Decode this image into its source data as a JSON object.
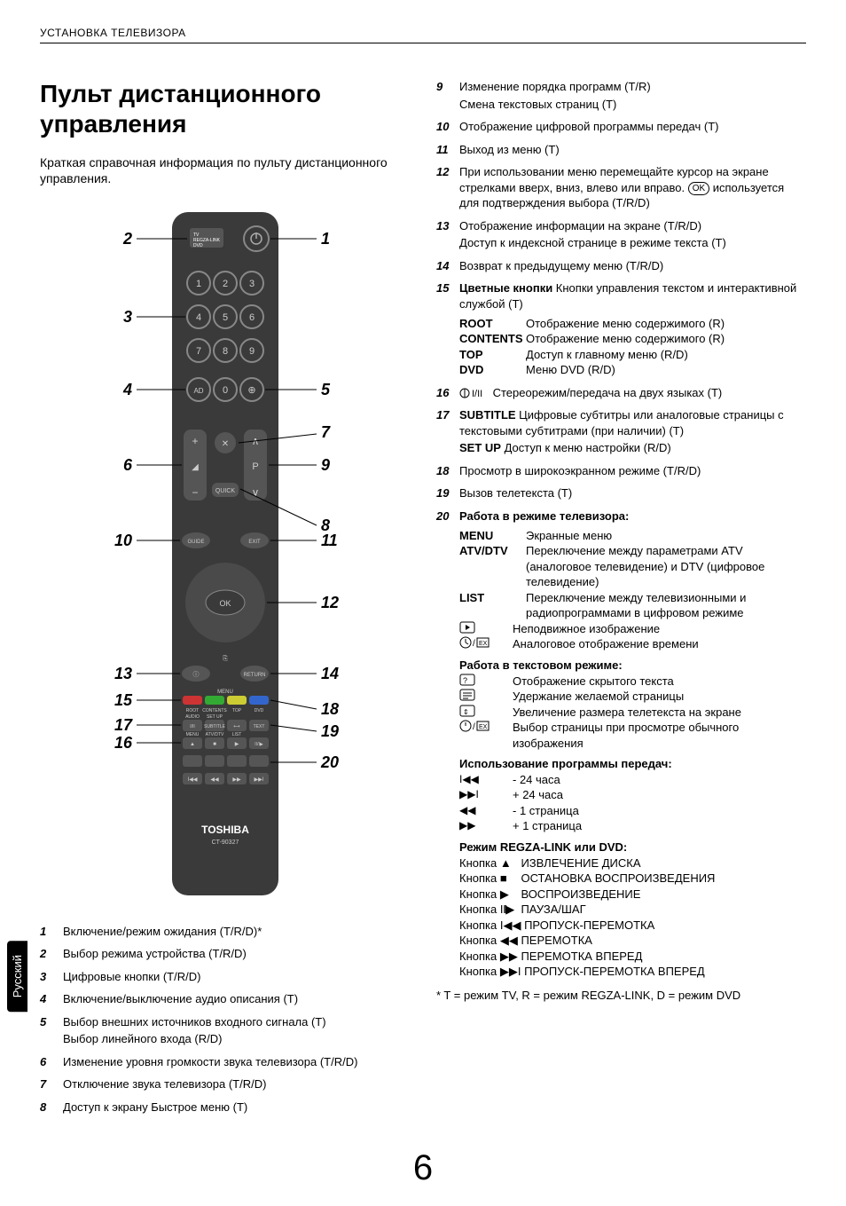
{
  "header": "УСТАНОВКА ТЕЛЕВИЗОРА",
  "title": "Пульт дистанционного управления",
  "intro": "Краткая справочная информация по пульту дистанционного управления.",
  "lang_tab": "Русский",
  "page_number": "6",
  "footnote": "* T = режим TV, R = режим REGZA-LINK, D = режим DVD",
  "remote": {
    "callouts_left": [
      "2",
      "3",
      "4",
      "6",
      "10",
      "13",
      "15",
      "17",
      "16"
    ],
    "callouts_right": [
      "1",
      "5",
      "7",
      "9",
      "8",
      "11",
      "12",
      "14",
      "18",
      "19",
      "20"
    ],
    "brand": "TOSHIBA",
    "model": "CT-90327"
  },
  "left_items": [
    {
      "n": "1",
      "text": "Включение/режим ожидания (T/R/D)*"
    },
    {
      "n": "2",
      "text": "Выбор режима устройства (T/R/D)"
    },
    {
      "n": "3",
      "text": "Цифровые кнопки (T/R/D)"
    },
    {
      "n": "4",
      "text": "Включение/выключение аудио описания (T)"
    },
    {
      "n": "5",
      "text": "Выбор внешних источников входного сигнала (T)",
      "line2": "Выбор линейного входа (R/D)"
    },
    {
      "n": "6",
      "text": "Изменение уровня громкости звука телевизора (T/R/D)"
    },
    {
      "n": "7",
      "text": "Отключение звука телевизора (T/R/D)"
    },
    {
      "n": "8",
      "text": "Доступ к экрану Быстрое меню (T)"
    }
  ],
  "right_items_a": [
    {
      "n": "9",
      "text": "Изменение порядка программ (T/R)",
      "line2": "Смена текстовых страниц (T)"
    },
    {
      "n": "10",
      "text": "Отображение цифровой программы передач (T)"
    },
    {
      "n": "11",
      "text": "Выход из меню (T)"
    },
    {
      "n": "12",
      "text_pre": "При использовании меню перемещайте курсор на экране стрелками вверх, вниз, влево или вправо. ",
      "text_post": " используется для подтверждения выбора (T/R/D)"
    },
    {
      "n": "13",
      "text": "Отображение информации на экране (T/R/D)",
      "line2": "Доступ к индексной странице в режиме текста (T)"
    },
    {
      "n": "14",
      "text": "Возврат к предыдущему меню (T/R/D)"
    }
  ],
  "item15": {
    "n": "15",
    "lead_bold": "Цветные кнопки",
    "lead_rest": " Кнопки управления текстом и интерактивной службой (T)",
    "rows": [
      {
        "k": "ROOT",
        "v": "Отображение меню содержимого (R)"
      },
      {
        "k": "CONTENTS",
        "v": "Отображение меню содержимого (R)"
      },
      {
        "k": "TOP",
        "v": "Доступ к главному меню (R/D)"
      },
      {
        "k": "DVD",
        "v": "Меню DVD (R/D)"
      }
    ]
  },
  "item16": {
    "n": "16",
    "text": "Стереорежим/передача на двух языках (T)"
  },
  "item17": {
    "n": "17",
    "l1_bold": "SUBTITLE",
    "l1_rest": " Цифровые субтитры или аналоговые страницы с текстовыми субтитрами (при наличии) (T)",
    "l2_bold": "SET UP",
    "l2_rest": " Доступ к меню настройки (R/D)"
  },
  "item18": {
    "n": "18",
    "text": "Просмотр в широкоэкранном режиме (T/R/D)"
  },
  "item19": {
    "n": "19",
    "text": "Вызов телетекста (T)"
  },
  "item20": {
    "n": "20",
    "tv_title": "Работа в режиме телевизора:",
    "tv_rows": [
      {
        "k": "MENU",
        "v": "Экранные меню"
      },
      {
        "k": "ATV/DTV",
        "v": "Переключение между параметрами ATV (аналоговое телевидение) и DTV (цифровое телевидение)"
      },
      {
        "k": "LIST",
        "v": "Переключение между телевизионными и радиопрограммами в цифровом режиме"
      }
    ],
    "tv_icon_rows": [
      {
        "v": "Неподвижное изображение"
      },
      {
        "v": "Аналоговое отображение времени"
      }
    ],
    "text_title": "Работа в текстовом режиме:",
    "text_rows": [
      {
        "v": "Отображение скрытого текста"
      },
      {
        "v": "Удержание желаемой страницы"
      },
      {
        "v": "Увеличение размера телетекста на экране"
      },
      {
        "v": "Выбор страницы при просмотре обычного изображения"
      }
    ],
    "guide_title": "Использование программы передач:",
    "guide_rows": [
      {
        "v": "- 24 часа"
      },
      {
        "v": "+ 24 часа"
      },
      {
        "v": "- 1 страница"
      },
      {
        "v": "+ 1 страница"
      }
    ],
    "regza_title": "Режим REGZA-LINK или DVD:",
    "regza_rows": [
      {
        "pre": "Кнопка ",
        "label": "ИЗВЛЕЧЕНИЕ ДИСКА"
      },
      {
        "pre": "Кнопка ",
        "label": "ОСТАНОВКА ВОСПРОИЗВЕДЕНИЯ"
      },
      {
        "pre": "Кнопка ",
        "label": "ВОСПРОИЗВЕДЕНИЕ"
      },
      {
        "pre": "Кнопка ",
        "label": "ПАУЗА/ШАГ"
      },
      {
        "pre": "Кнопка ",
        "label": "ПРОПУСК-ПЕРЕМОТКА"
      },
      {
        "pre": "Кнопка ",
        "label": "ПЕРЕМОТКА"
      },
      {
        "pre": "Кнопка ",
        "label": "ПЕРЕМОТКА ВПЕРЕД"
      },
      {
        "pre": "Кнопка ",
        "label": "ПРОПУСК-ПЕРЕМОТКА ВПЕРЕД"
      }
    ]
  }
}
